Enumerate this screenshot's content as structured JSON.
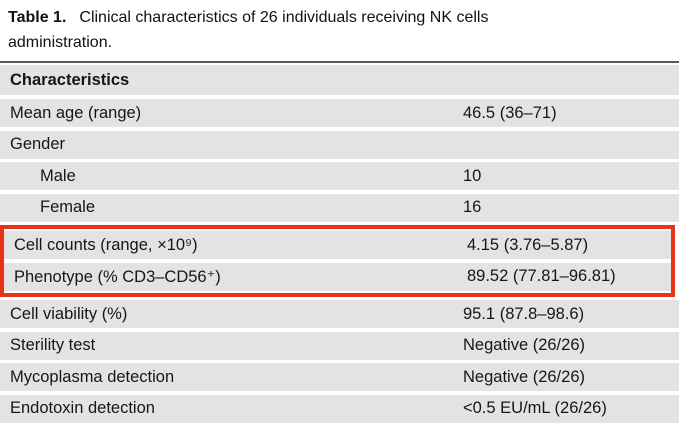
{
  "caption": {
    "prefix": "Table 1.",
    "line1": "Clinical characteristics of 26 individuals receiving NK cells",
    "line2": "administration."
  },
  "table": {
    "header": "Characteristics",
    "rows": [
      {
        "label": "Mean age (range)",
        "value": "46.5 (36–71)",
        "indent": false
      },
      {
        "label": "Gender",
        "value": "",
        "indent": false
      },
      {
        "label": "Male",
        "value": "10",
        "indent": true
      },
      {
        "label": "Female",
        "value": "16",
        "indent": true
      },
      {
        "label": "Cell counts (range, ×10⁹)",
        "value": "4.15 (3.76–5.87)",
        "indent": false
      },
      {
        "label": "Phenotype (% CD3–CD56⁺)",
        "value": "89.52 (77.81–96.81)",
        "indent": false
      },
      {
        "label": "Cell viability (%)",
        "value": "95.1 (87.8–98.6)",
        "indent": false
      },
      {
        "label": "Sterility test",
        "value": "Negative (26/26)",
        "indent": false
      },
      {
        "label": "Mycoplasma detection",
        "value": "Negative (26/26)",
        "indent": false
      },
      {
        "label": "Endotoxin detection",
        "value": "<0.5 EU/mL (26/26)",
        "indent": false
      }
    ],
    "highlighted_row_indexes": [
      4,
      5
    ]
  },
  "colors": {
    "row_background": "#e4e3e3",
    "top_rule": "#5a5a5c",
    "text": "#161616",
    "highlight_box": "#e6341c"
  }
}
